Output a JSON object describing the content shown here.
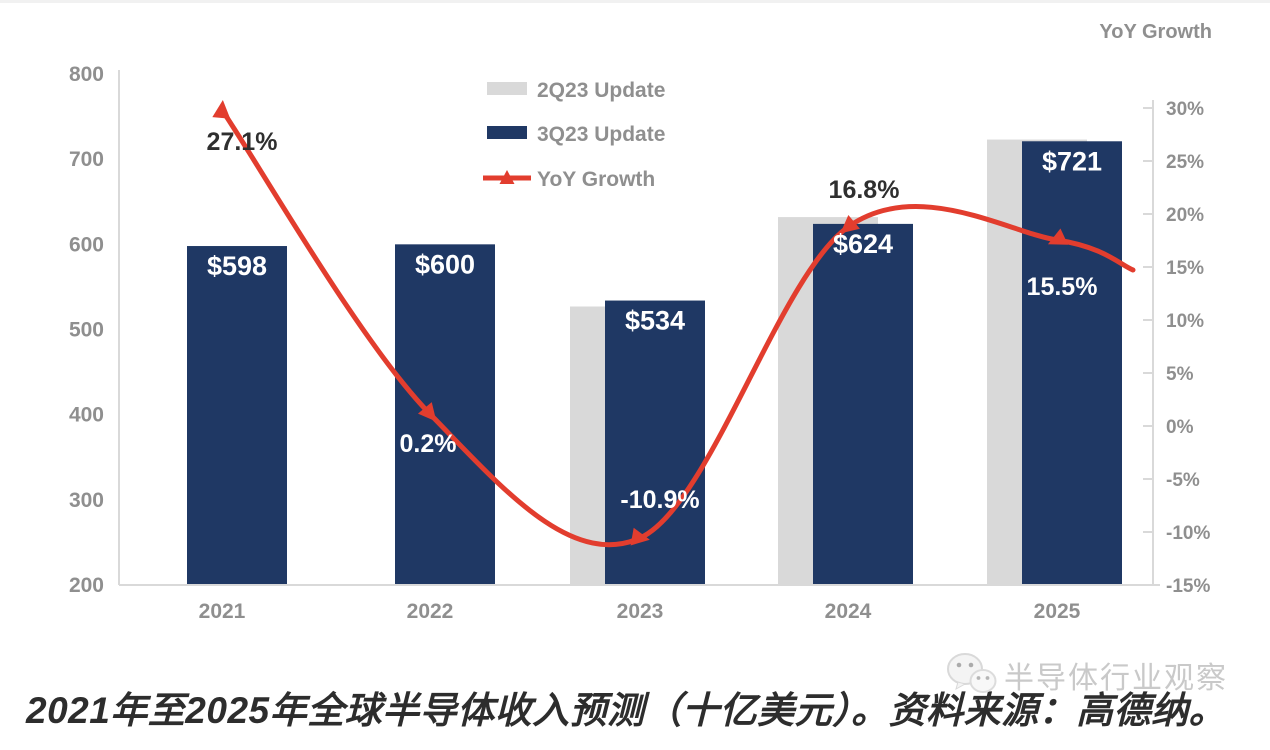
{
  "legend": {
    "items": [
      {
        "label": "2Q23 Update",
        "swatch": "gray-bar-swatch"
      },
      {
        "label": "3Q23 Update",
        "swatch": "navy-bar-swatch"
      },
      {
        "label": "YoY Growth",
        "swatch": "red-line-triangle-swatch"
      }
    ]
  },
  "caption": "2021年至2025年全球半导体收入预测（十亿美元）。资料来源：高德纳。",
  "watermark": {
    "label": "半导体行业观察",
    "icon": "wechat-chat-bubbles-icon"
  },
  "colors": {
    "bar_2q23": "#d9d9d9",
    "bar_3q23": "#1f3864",
    "yoy_line": "#e23d2e",
    "axis_text": "#8f8f8f",
    "axis_line": "#d9d9d9",
    "bar_value_label": "#ffffff",
    "yoy_label_dark": "#2f2f2f",
    "yoy_label_light": "#ffffff",
    "caption_text": "#2d2d2d",
    "watermark_text": "#c9c9c9"
  },
  "chart_data": {
    "type": "bar",
    "combo": "grouped bars with line on secondary axis",
    "categories": [
      "2021",
      "2022",
      "2023",
      "2024",
      "2025"
    ],
    "series": [
      {
        "name": "2Q23 Update",
        "type": "bar",
        "axis": "left",
        "values": [
          598,
          600,
          527,
          632,
          723
        ],
        "values_estimated": true
      },
      {
        "name": "3Q23 Update",
        "type": "bar",
        "axis": "left",
        "values": [
          598,
          600,
          534,
          624,
          721
        ],
        "labels": [
          "$598",
          "$600",
          "$534",
          "$624",
          "$721"
        ]
      },
      {
        "name": "YoY Growth",
        "type": "line",
        "axis": "right",
        "values": [
          27.1,
          0.2,
          -10.9,
          16.8,
          15.5
        ],
        "labels": [
          "27.1%",
          "0.2%",
          "-10.9%",
          "16.8%",
          "15.5%"
        ],
        "label_styles": [
          "dark",
          "light",
          "light",
          "dark",
          "light"
        ]
      }
    ],
    "left_axis": {
      "min": 200,
      "max": 800,
      "ticks": [
        "800",
        "700",
        "600",
        "500",
        "400",
        "300",
        "200"
      ]
    },
    "right_axis": {
      "title": "YoY Growth",
      "min": -15,
      "max": 30,
      "ticks": [
        "30%",
        "25%",
        "20%",
        "15%",
        "10%",
        "5%",
        "0%",
        "-5%",
        "-10%",
        "-15%"
      ]
    },
    "legend_position": "top-center",
    "grid": false
  }
}
